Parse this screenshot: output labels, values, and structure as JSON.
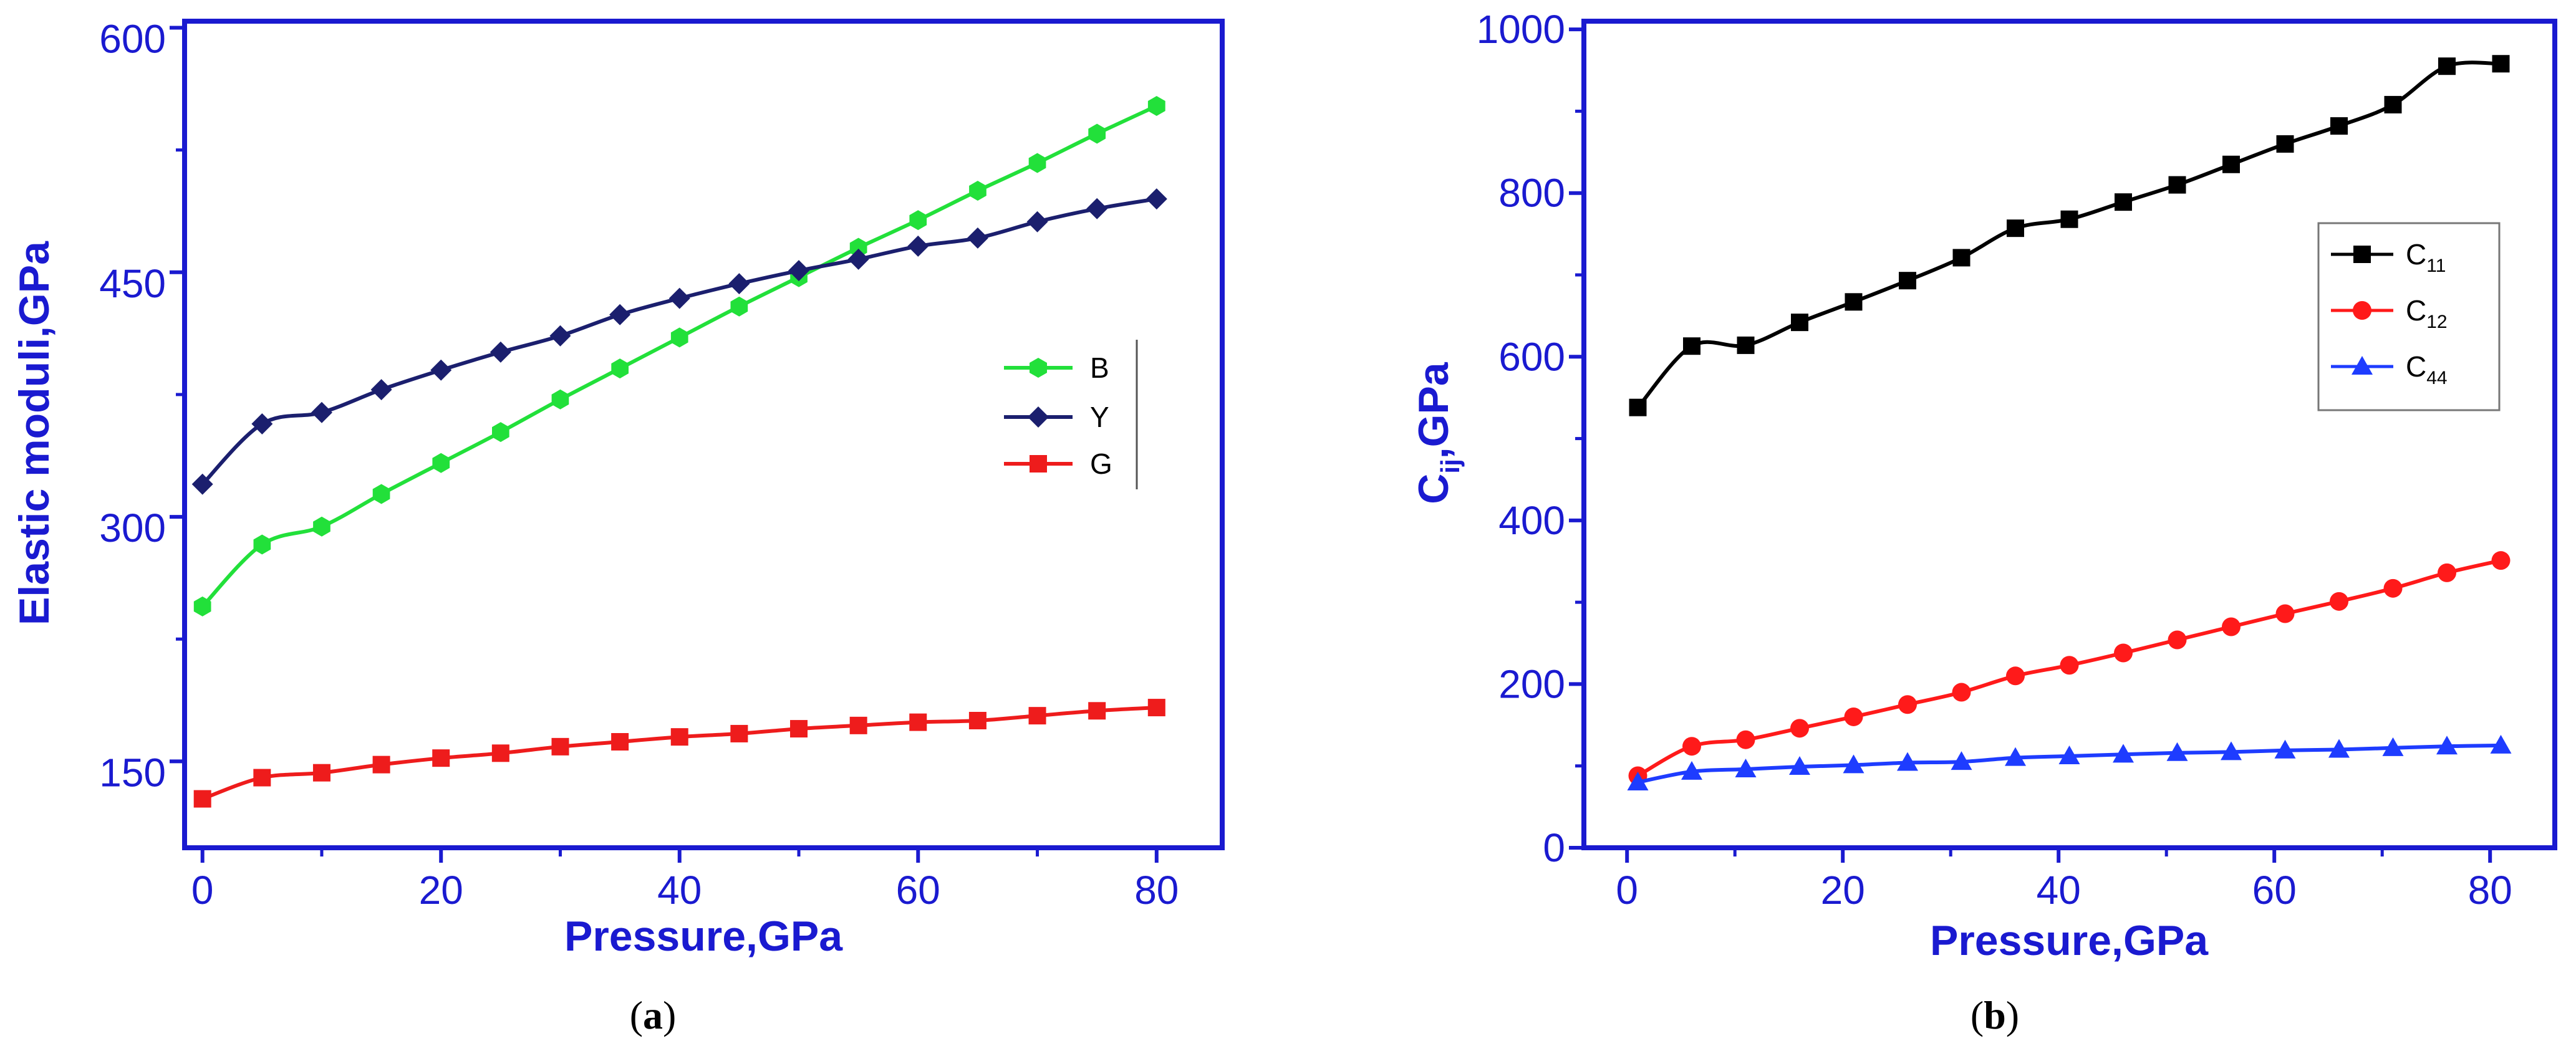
{
  "colors": {
    "axis": "#1a1ad0",
    "B": "#22e03a",
    "Y": "#1b1f6e",
    "G": "#ee1c1c",
    "C11": "#000000",
    "C12": "#ff1a1a",
    "C44": "#1e3cff"
  },
  "captions": {
    "a_open": "(",
    "a_letter": "a",
    "a_close": ")",
    "b_open": "(",
    "b_letter": "b",
    "b_close": ")"
  },
  "chart_data": [
    {
      "id": "a",
      "type": "line",
      "xlabel": "Pressure,GPa",
      "ylabel": "Elastic moduli,GPa",
      "xlim": [
        -1.5,
        85.5
      ],
      "ylim": [
        97,
        604
      ],
      "xticks": [
        0,
        20,
        40,
        60,
        80
      ],
      "yticks": [
        150,
        300,
        450,
        600
      ],
      "x": [
        0,
        5,
        10,
        15,
        20,
        25,
        30,
        35,
        40,
        45,
        50,
        55,
        60,
        65,
        70,
        75,
        80
      ],
      "legend_position": "center-right",
      "series": [
        {
          "name": "B",
          "key": "B",
          "marker": "hexagon",
          "values": [
            245,
            283,
            294,
            314,
            333,
            352,
            372,
            391,
            410,
            429,
            447,
            465,
            482,
            500,
            517,
            535,
            552
          ]
        },
        {
          "name": "Y",
          "key": "Y",
          "marker": "diamond",
          "values": [
            320,
            357,
            364,
            378,
            390,
            401,
            411,
            424,
            434,
            443,
            451,
            458,
            466,
            471,
            481,
            489,
            495
          ]
        },
        {
          "name": "G",
          "key": "G",
          "marker": "square",
          "values": [
            127,
            140,
            143,
            148,
            152,
            155,
            159,
            162,
            165,
            167,
            170,
            172,
            174,
            175,
            178,
            181,
            183
          ]
        }
      ]
    },
    {
      "id": "b",
      "type": "line",
      "xlabel": "Pressure,GPa",
      "ylabel_main": "C",
      "ylabel_sub": "ij",
      "ylabel_rest": ",GPa",
      "xlim": [
        -4,
        86
      ],
      "ylim": [
        0,
        1010
      ],
      "xticks": [
        0,
        20,
        40,
        60,
        80
      ],
      "yticks": [
        0,
        200,
        400,
        600,
        800,
        1000
      ],
      "x": [
        1,
        6,
        11,
        16,
        21,
        26,
        31,
        36,
        41,
        46,
        51,
        56,
        61,
        66,
        71,
        76,
        81
      ],
      "legend_position": "right",
      "series": [
        {
          "name": "C",
          "sub": "11",
          "key": "C11",
          "marker": "square",
          "values": [
            538,
            613,
            614,
            642,
            667,
            693,
            721,
            757,
            768,
            789,
            810,
            835,
            860,
            882,
            908,
            955,
            958
          ]
        },
        {
          "name": "C",
          "sub": "12",
          "key": "C12",
          "marker": "circle",
          "values": [
            88,
            124,
            132,
            146,
            160,
            175,
            190,
            210,
            223,
            238,
            254,
            270,
            286,
            301,
            317,
            336,
            351
          ]
        },
        {
          "name": "C",
          "sub": "44",
          "key": "C44",
          "marker": "triangle",
          "values": [
            80,
            93,
            96,
            99,
            101,
            104,
            105,
            110,
            112,
            114,
            116,
            117,
            119,
            120,
            122,
            124,
            125
          ]
        }
      ]
    }
  ]
}
